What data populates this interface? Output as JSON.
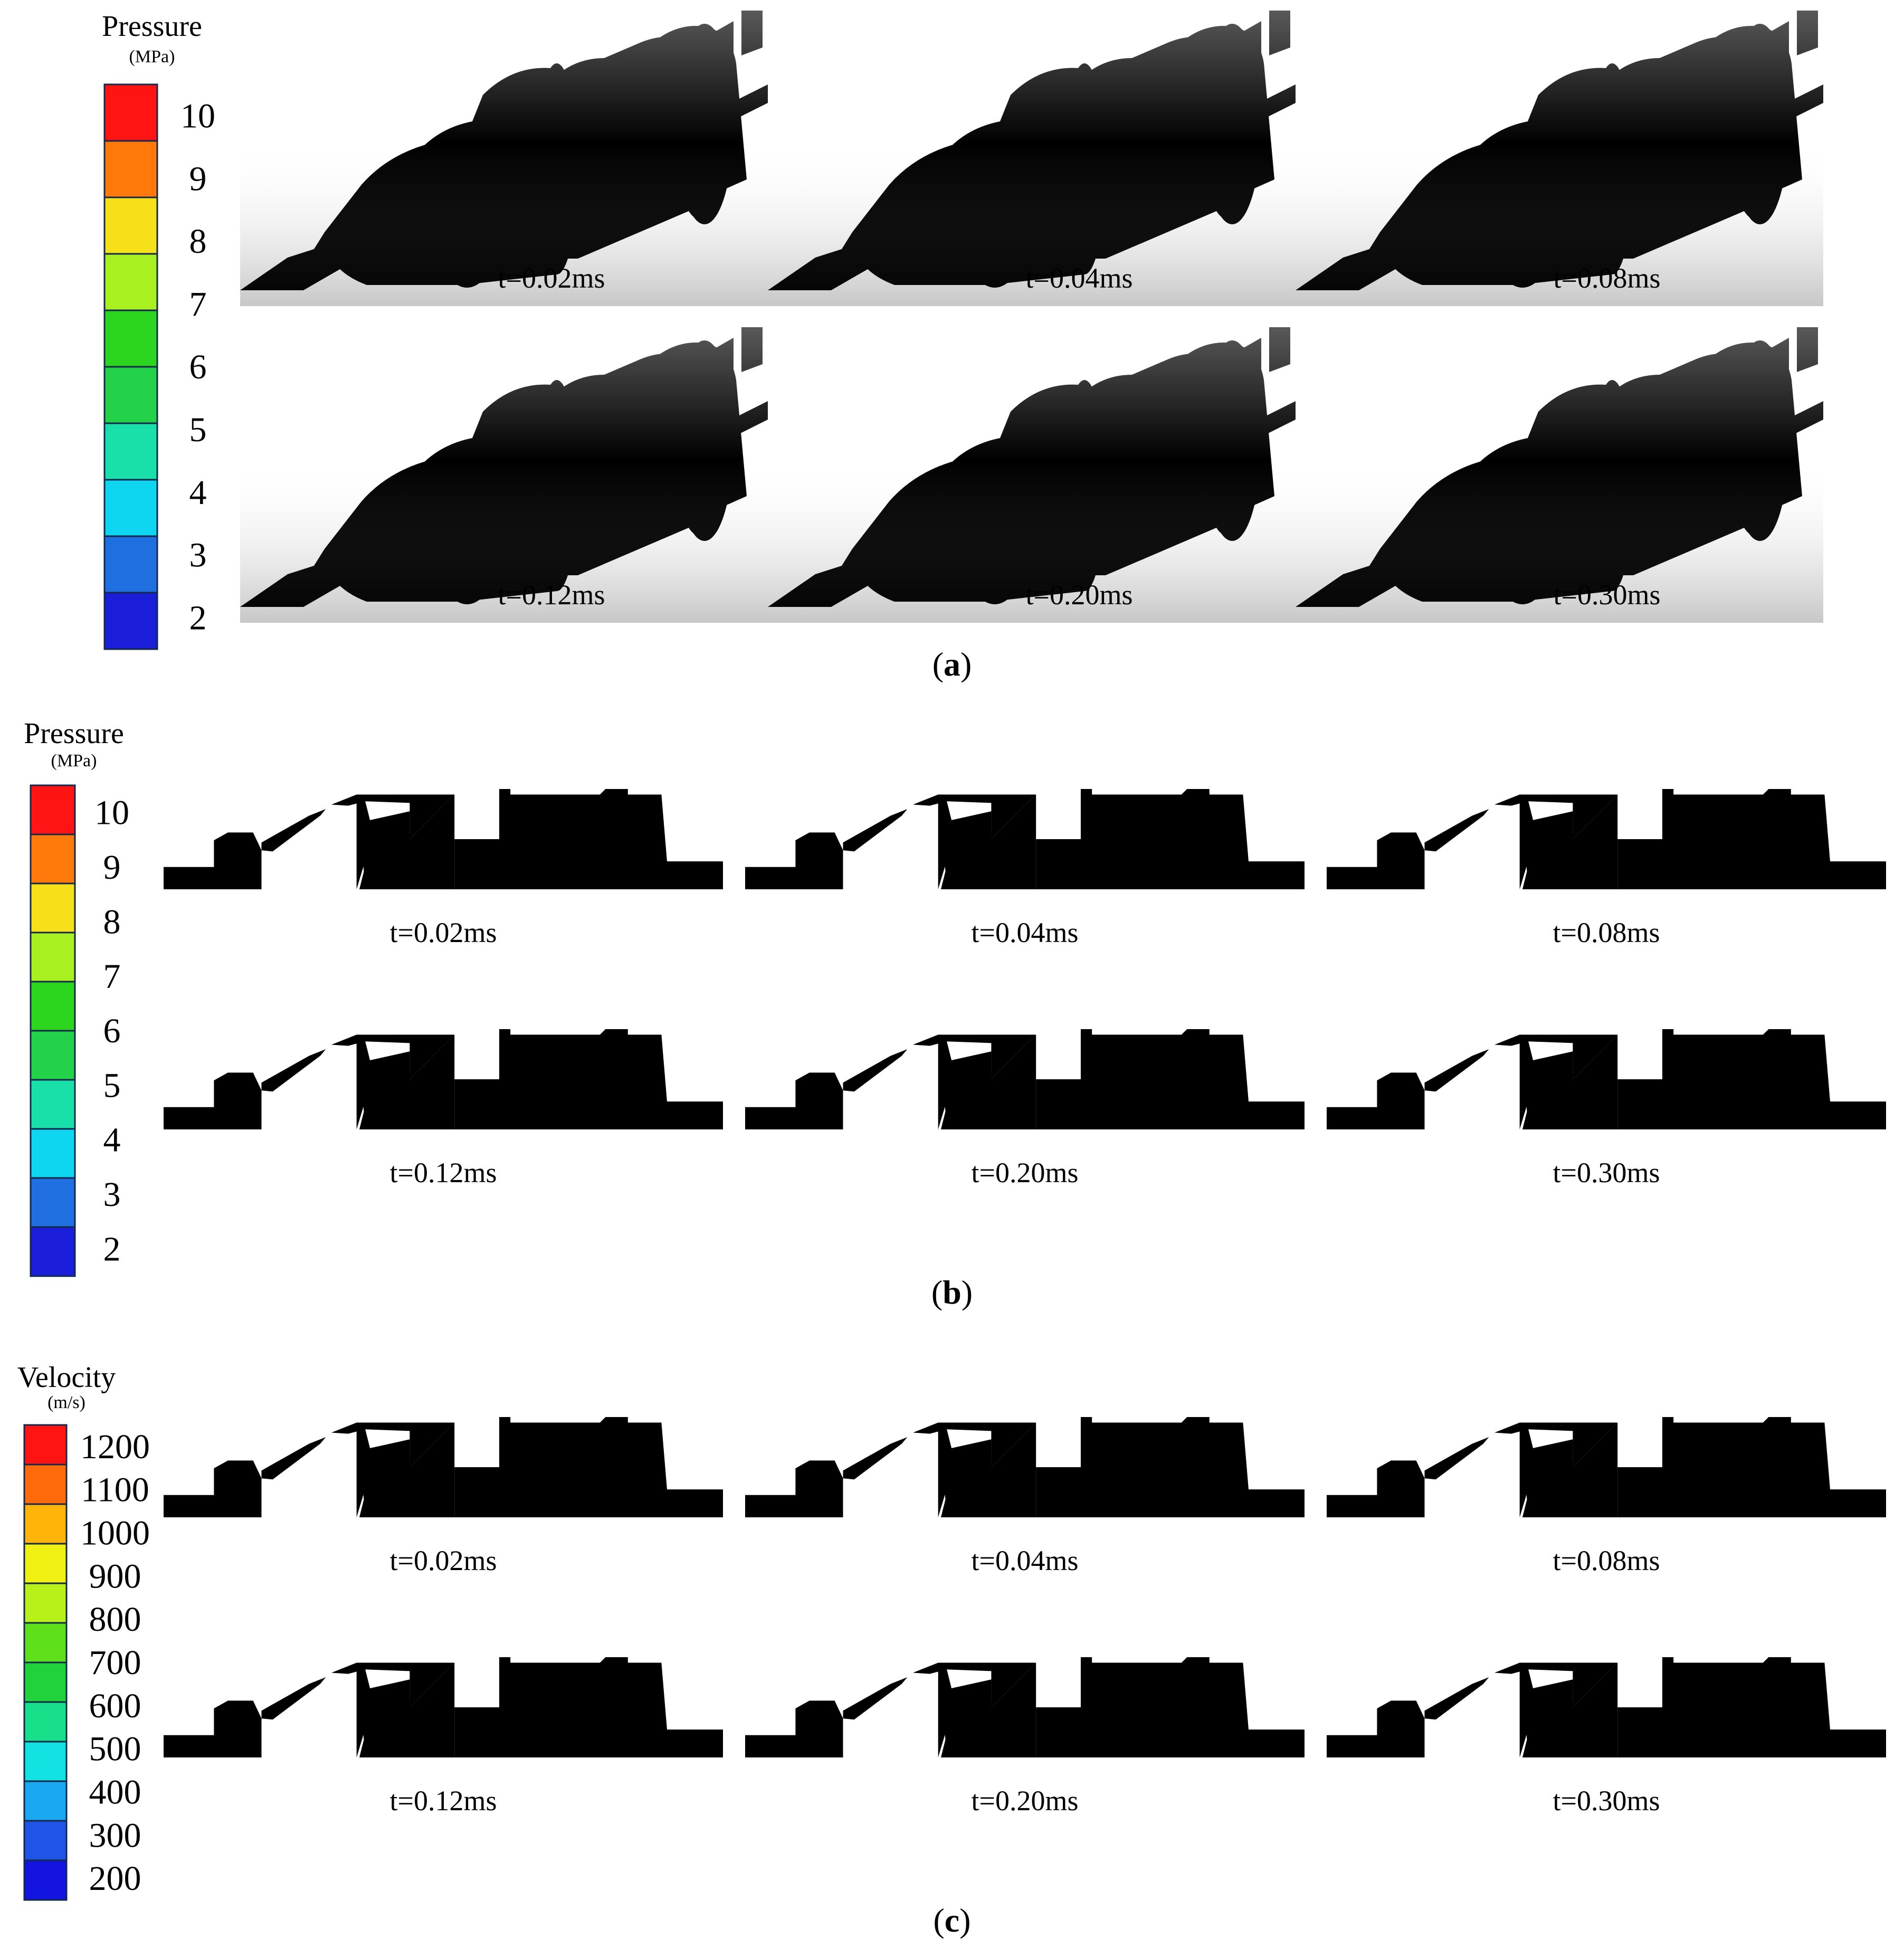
{
  "colors": {
    "pressure_levels": [
      "#1b1ed8",
      "#1f6fe0",
      "#0fd6f0",
      "#18e0a8",
      "#24d24a",
      "#2cd61e",
      "#a8f020",
      "#f5e01a",
      "#ff7a0a",
      "#ff1414"
    ],
    "velocity_levels": [
      "#1414e0",
      "#1f55e6",
      "#1aa8f0",
      "#12e2e2",
      "#18e08a",
      "#22d23a",
      "#5ee01a",
      "#b8f01a",
      "#f0f012",
      "#ffb40a",
      "#ff6a0a",
      "#ff1414"
    ],
    "outline": "#14284c",
    "background": "#ffffff"
  },
  "panel_a": {
    "label": "(a)",
    "label_bold": "a",
    "legend": {
      "title": "Pressure",
      "unit": "(MPa)",
      "ticks": [
        "10",
        "9",
        "8",
        "7",
        "6",
        "5",
        "4",
        "3",
        "2"
      ]
    },
    "frames": [
      {
        "time": "t=0.02ms",
        "body_color": "#1f6fe0",
        "nose_color": "#1f6fe0",
        "inlet_color": "#1f6fe0",
        "shade_color": "#1858b8",
        "hot_color": "#1f6fe0"
      },
      {
        "time": "t=0.04ms",
        "body_color": "#1f6fe0",
        "nose_color": "#2ee0d0",
        "inlet_color": "#1aa8e0",
        "shade_color": "#1858b8",
        "hot_color": "#2ee0d0"
      },
      {
        "time": "t=0.08ms",
        "body_color": "#1f6fe0",
        "nose_color": "#ff1414",
        "inlet_color": "#ff1414",
        "shade_color": "#1858b8",
        "hot_color": "#ff1414"
      },
      {
        "time": "t=0.12ms",
        "body_color": "#12d8f2",
        "nose_color": "#f0d21a",
        "inlet_color": "#d8c01a",
        "shade_color": "#0ea0c0",
        "hot_color": "#ff1414"
      },
      {
        "time": "t=0.20ms",
        "body_color": "#2cd23a",
        "nose_color": "#30d24a",
        "inlet_color": "#2cc83a",
        "shade_color": "#1fa02a",
        "hot_color": "#ff7a0a"
      },
      {
        "time": "t=0.30ms",
        "body_color": "#5cd82a",
        "nose_color": "#e6f040",
        "inlet_color": "#5ed22a",
        "shade_color": "#44a820",
        "hot_color": "#ff1414"
      }
    ]
  },
  "panel_b": {
    "label": "(b)",
    "label_bold": "b",
    "legend": {
      "title": "Pressure",
      "unit": "(MPa)",
      "ticks": [
        "10",
        "9",
        "8",
        "7",
        "6",
        "5",
        "4",
        "3",
        "2"
      ]
    },
    "frames": [
      {
        "time": "t=0.02ms",
        "inlet": "#1f6fe0",
        "duct": "#1f6fe0",
        "body": "#1f6fe0",
        "outlet": "#1f6fe0"
      },
      {
        "time": "t=0.04ms",
        "inlet": "#12d8f2",
        "duct": "#18e0a8",
        "body": "#1f6fe0",
        "outlet": "#1f6fe0"
      },
      {
        "time": "t=0.08ms",
        "inlet": "#ff1414",
        "duct": "#ff1414",
        "body": "#1f6fe0",
        "outlet": "#1f6fe0"
      },
      {
        "time": "t=0.12ms",
        "inlet": "#f5e01a",
        "duct": "#f5e01a",
        "body": "#0fd6f0",
        "outlet": "#1f6fe0"
      },
      {
        "time": "t=0.20ms",
        "inlet": "#24d24a",
        "duct": "#2cd61e",
        "body": "#2cd61e",
        "outlet": "#0fd6f0"
      },
      {
        "time": "t=0.30ms",
        "inlet": "#a8f020",
        "duct": "#a8f020",
        "body": "#5cd82a",
        "outlet": "#18e0a8"
      }
    ]
  },
  "panel_c": {
    "label": "(c)",
    "label_bold": "c",
    "legend": {
      "title": "Velocity",
      "unit": "(m/s)",
      "ticks": [
        "1200",
        "1100",
        "1000",
        "900",
        "800",
        "700",
        "600",
        "500",
        "400",
        "300",
        "200"
      ]
    },
    "frames": [
      {
        "time": "t=0.02ms",
        "inlet": "#1414e0",
        "duct": "#1414e0",
        "body": "#1414e0",
        "outlet": "#1414e0",
        "jet": "#1414e0"
      },
      {
        "time": "t=0.04ms",
        "inlet": "#ff1414",
        "duct": "#1aa8f0",
        "body": "#1414e0",
        "outlet": "#1414e0",
        "jet": "#1414e0"
      },
      {
        "time": "t=0.08ms",
        "inlet": "#1aa8f0",
        "duct": "#1aa8f0",
        "body": "#1414e0",
        "outlet": "#1f55e6",
        "jet": "#22d23a"
      },
      {
        "time": "t=0.12ms",
        "inlet": "#b8f01a",
        "duct": "#1aa8f0",
        "body": "#1414e0",
        "outlet": "#5ee01a",
        "jet": "#ff1414"
      },
      {
        "time": "t=0.20ms",
        "inlet": "#f0f012",
        "duct": "#1aa8f0",
        "body": "#1414e0",
        "outlet": "#ffb40a",
        "jet": "#12e2e2"
      },
      {
        "time": "t=0.30ms",
        "inlet": "#ffb40a",
        "duct": "#1aa8f0",
        "body": "#1414e0",
        "outlet": "#ff1414",
        "jet": "#12e2e2"
      }
    ]
  }
}
